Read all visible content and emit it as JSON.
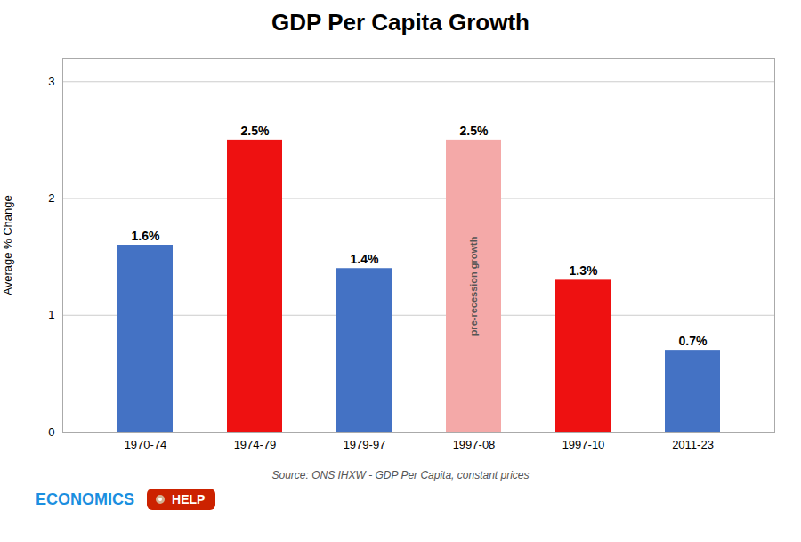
{
  "chart_data": {
    "type": "bar",
    "title": "GDP Per Capita Growth",
    "categories": [
      "1970-74",
      "1974-79",
      "1979-97",
      "1997-08",
      "1997-10",
      "2011-23"
    ],
    "values": [
      1.6,
      2.5,
      1.4,
      2.5,
      1.3,
      0.7
    ],
    "value_labels": [
      "1.6%",
      "2.5%",
      "1.4%",
      "2.5%",
      "1.3%",
      "0.7%"
    ],
    "data_labels": true,
    "colors": [
      "#4472C4",
      "#EE1111",
      "#4472C4",
      "#F4A9A8",
      "#EE1111",
      "#4472C4"
    ],
    "ylabel": "Average % Change",
    "ylim": [
      0,
      3.2
    ],
    "yticks": [
      0,
      1,
      2,
      3
    ],
    "grid": true,
    "annotation": {
      "text": "pre-recession growth",
      "category": "1997-08",
      "y": 1.25
    },
    "source": "Source: ONS IHXW - GDP Per Capita, constant prices",
    "logo": [
      {
        "text": "ECONOMICS",
        "color": "#1B8FE0"
      },
      {
        "text": "HELP",
        "color": "#CC2200"
      }
    ]
  }
}
